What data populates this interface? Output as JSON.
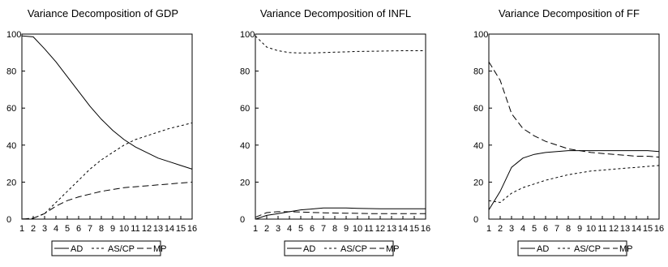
{
  "chart_data": [
    {
      "type": "line",
      "title": "Variance Decomposition of GDP",
      "x": [
        1,
        2,
        3,
        4,
        5,
        6,
        7,
        8,
        9,
        10,
        11,
        12,
        13,
        14,
        15,
        16
      ],
      "xticks": [
        "1",
        "2",
        "3",
        "4",
        "5",
        "6",
        "7",
        "8",
        "9",
        "10",
        "11",
        "12",
        "13",
        "14",
        "15",
        "16"
      ],
      "ylim": [
        0,
        100
      ],
      "yticks": [
        "0",
        "20",
        "40",
        "60",
        "80",
        "100"
      ],
      "grid": false,
      "legend": "bottom",
      "series": [
        {
          "name": "AD",
          "dash": "solid",
          "values": [
            99,
            98.5,
            92,
            85,
            77,
            69,
            61,
            54,
            48,
            43,
            39,
            36,
            33,
            31,
            29,
            27
          ]
        },
        {
          "name": "AS/CP",
          "dash": "short",
          "values": [
            0,
            0.5,
            3,
            9,
            15,
            21,
            27,
            32,
            36,
            40,
            43,
            45,
            47,
            49,
            50.5,
            52
          ]
        },
        {
          "name": "MP",
          "dash": "long",
          "values": [
            0,
            0.5,
            3,
            7,
            10,
            12,
            13.5,
            15,
            16,
            17,
            17.5,
            18,
            18.5,
            19,
            19.5,
            20
          ]
        }
      ]
    },
    {
      "type": "line",
      "title": "Variance Decomposition of INFL",
      "x": [
        1,
        2,
        3,
        4,
        5,
        6,
        7,
        8,
        9,
        10,
        11,
        12,
        13,
        14,
        15,
        16
      ],
      "xticks": [
        "1",
        "2",
        "3",
        "4",
        "5",
        "6",
        "7",
        "8",
        "9",
        "10",
        "11",
        "12",
        "13",
        "14",
        "15",
        "16"
      ],
      "ylim": [
        0,
        100
      ],
      "yticks": [
        "0",
        "20",
        "40",
        "60",
        "80",
        "100"
      ],
      "grid": false,
      "legend": "bottom",
      "series": [
        {
          "name": "AD",
          "dash": "solid",
          "values": [
            0,
            2,
            3,
            4,
            5,
            5.5,
            6,
            6,
            6,
            5.8,
            5.7,
            5.6,
            5.6,
            5.6,
            5.6,
            5.6
          ]
        },
        {
          "name": "AS/CP",
          "dash": "short",
          "values": [
            99,
            93,
            91,
            90,
            89.8,
            89.8,
            90,
            90.2,
            90.4,
            90.6,
            90.7,
            90.8,
            90.9,
            91,
            91,
            91
          ]
        },
        {
          "name": "MP",
          "dash": "long",
          "values": [
            1,
            3.5,
            4,
            4,
            3.8,
            3.6,
            3.4,
            3.3,
            3.2,
            3.1,
            3,
            3,
            3,
            3,
            3,
            3
          ]
        }
      ]
    },
    {
      "type": "line",
      "title": "Variance Decomposition of FF",
      "x": [
        1,
        2,
        3,
        4,
        5,
        6,
        7,
        8,
        9,
        10,
        11,
        12,
        13,
        14,
        15,
        16
      ],
      "xticks": [
        "1",
        "2",
        "3",
        "4",
        "5",
        "6",
        "7",
        "8",
        "9",
        "10",
        "11",
        "12",
        "13",
        "14",
        "15",
        "16"
      ],
      "ylim": [
        0,
        100
      ],
      "yticks": [
        "0",
        "20",
        "40",
        "60",
        "80",
        "100"
      ],
      "grid": false,
      "legend": "bottom",
      "series": [
        {
          "name": "AD",
          "dash": "solid",
          "values": [
            5,
            15,
            28,
            33,
            35,
            36,
            36.5,
            37,
            37,
            37,
            37,
            37,
            37,
            37,
            37,
            36.5
          ]
        },
        {
          "name": "AS/CP",
          "dash": "short",
          "values": [
            10,
            9,
            14,
            17,
            19,
            21,
            22.5,
            24,
            25,
            26,
            26.5,
            27,
            27.5,
            28,
            28.5,
            29
          ]
        },
        {
          "name": "MP",
          "dash": "long",
          "values": [
            85,
            75,
            57,
            49,
            45,
            42,
            40,
            38,
            37,
            36,
            35.5,
            35,
            34.5,
            34,
            34,
            33.5
          ]
        }
      ]
    }
  ]
}
